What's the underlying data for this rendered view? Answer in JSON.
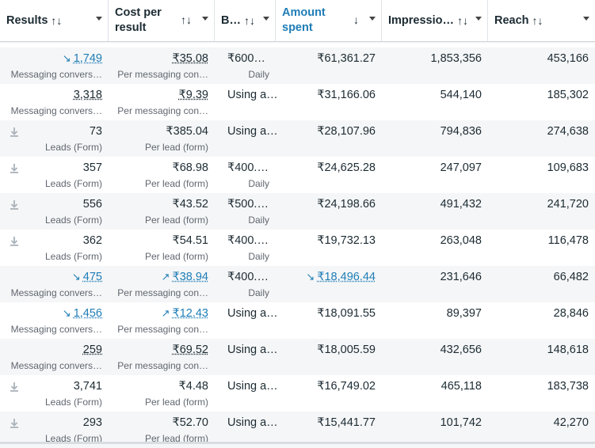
{
  "columns": [
    {
      "label": "Results",
      "sort": "↑↓"
    },
    {
      "label": "Cost per result",
      "sort": "↑↓"
    },
    {
      "label": "B…",
      "sort": "↑↓"
    },
    {
      "label": "Amount spent",
      "sort": "↓"
    },
    {
      "label": "Impressio…",
      "sort": "↑↓"
    },
    {
      "label": "Reach",
      "sort": "↑↓"
    }
  ],
  "rows": [
    {
      "result": "1,749",
      "result_trend": "↘",
      "result_type": "Messaging convers…",
      "cost": "₹35.08",
      "cost_trend": "",
      "cost_type": "Per messaging con…",
      "budget": "₹600…",
      "budget_type": "Daily",
      "spent": "₹61,361.27",
      "spent_trend": "",
      "impressions": "1,853,356",
      "reach": "453,166",
      "icon": "none",
      "style": "link"
    },
    {
      "result": "3,318",
      "result_trend": "",
      "result_type": "Messaging convers…",
      "cost": "₹9.39",
      "cost_trend": "",
      "cost_type": "Per messaging con…",
      "budget": "Using a…",
      "budget_type": "",
      "spent": "₹31,166.06",
      "spent_trend": "",
      "impressions": "544,140",
      "reach": "185,302",
      "icon": "none",
      "style": "under"
    },
    {
      "result": "73",
      "result_trend": "",
      "result_type": "Leads (Form)",
      "cost": "₹385.04",
      "cost_trend": "",
      "cost_type": "Per lead (form)",
      "budget": "Using a…",
      "budget_type": "",
      "spent": "₹28,107.96",
      "spent_trend": "",
      "impressions": "794,836",
      "reach": "274,638",
      "icon": "download-icon",
      "style": "plain"
    },
    {
      "result": "357",
      "result_trend": "",
      "result_type": "Leads (Form)",
      "cost": "₹68.98",
      "cost_trend": "",
      "cost_type": "Per lead (form)",
      "budget": "₹400.…",
      "budget_type": "Daily",
      "spent": "₹24,625.28",
      "spent_trend": "",
      "impressions": "247,097",
      "reach": "109,683",
      "icon": "download-icon",
      "style": "plain"
    },
    {
      "result": "556",
      "result_trend": "",
      "result_type": "Leads (Form)",
      "cost": "₹43.52",
      "cost_trend": "",
      "cost_type": "Per lead (form)",
      "budget": "₹500.…",
      "budget_type": "Daily",
      "spent": "₹24,198.66",
      "spent_trend": "",
      "impressions": "491,432",
      "reach": "241,720",
      "icon": "download-icon",
      "style": "plain"
    },
    {
      "result": "362",
      "result_trend": "",
      "result_type": "Leads (Form)",
      "cost": "₹54.51",
      "cost_trend": "",
      "cost_type": "Per lead (form)",
      "budget": "₹400.…",
      "budget_type": "Daily",
      "spent": "₹19,732.13",
      "spent_trend": "",
      "impressions": "263,048",
      "reach": "116,478",
      "icon": "download-icon",
      "style": "plain"
    },
    {
      "result": "475",
      "result_trend": "↘",
      "result_type": "Messaging convers…",
      "cost": "₹38.94",
      "cost_trend": "↗",
      "cost_type": "Per messaging con…",
      "budget": "₹400.…",
      "budget_type": "Daily",
      "spent": "₹18,496.44",
      "spent_trend": "↘",
      "impressions": "231,646",
      "reach": "66,482",
      "icon": "none",
      "style": "link"
    },
    {
      "result": "1,456",
      "result_trend": "↘",
      "result_type": "Messaging convers…",
      "cost": "₹12.43",
      "cost_trend": "↗",
      "cost_type": "Per messaging con…",
      "budget": "Using a…",
      "budget_type": "",
      "spent": "₹18,091.55",
      "spent_trend": "",
      "impressions": "89,397",
      "reach": "28,846",
      "icon": "none",
      "style": "link"
    },
    {
      "result": "259",
      "result_trend": "",
      "result_type": "Messaging convers…",
      "cost": "₹69.52",
      "cost_trend": "",
      "cost_type": "Per messaging con…",
      "budget": "Using a…",
      "budget_type": "",
      "spent": "₹18,005.59",
      "spent_trend": "",
      "impressions": "432,656",
      "reach": "148,618",
      "icon": "none",
      "style": "under"
    },
    {
      "result": "3,741",
      "result_trend": "",
      "result_type": "Leads (Form)",
      "cost": "₹4.48",
      "cost_trend": "",
      "cost_type": "Per lead (form)",
      "budget": "Using a…",
      "budget_type": "",
      "spent": "₹16,749.02",
      "spent_trend": "",
      "impressions": "465,118",
      "reach": "183,738",
      "icon": "download-icon",
      "style": "plain"
    },
    {
      "result": "293",
      "result_trend": "",
      "result_type": "Leads (Form)",
      "cost": "₹52.70",
      "cost_trend": "",
      "cost_type": "Per lead (form)",
      "budget": "Using a…",
      "budget_type": "",
      "spent": "₹15,441.77",
      "spent_trend": "",
      "impressions": "101,742",
      "reach": "42,270",
      "icon": "download-icon",
      "style": "plain"
    }
  ],
  "colors": {
    "link": "#1f7db7",
    "header_active": "#1f7db7",
    "alt_row": "#f5f6f7"
  }
}
